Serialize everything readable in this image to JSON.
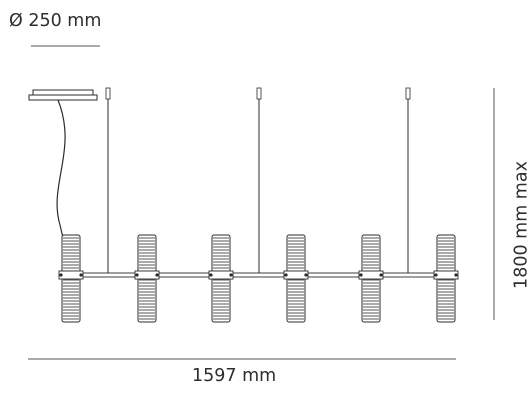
{
  "labels": {
    "diameter": "Ø 250 mm",
    "width": "1597 mm",
    "height": "1800 mm max"
  },
  "diagram": {
    "shade_count": 6,
    "suspension_count": 3,
    "line_color": "#2b2b2b",
    "dimension_color": "#555555"
  }
}
